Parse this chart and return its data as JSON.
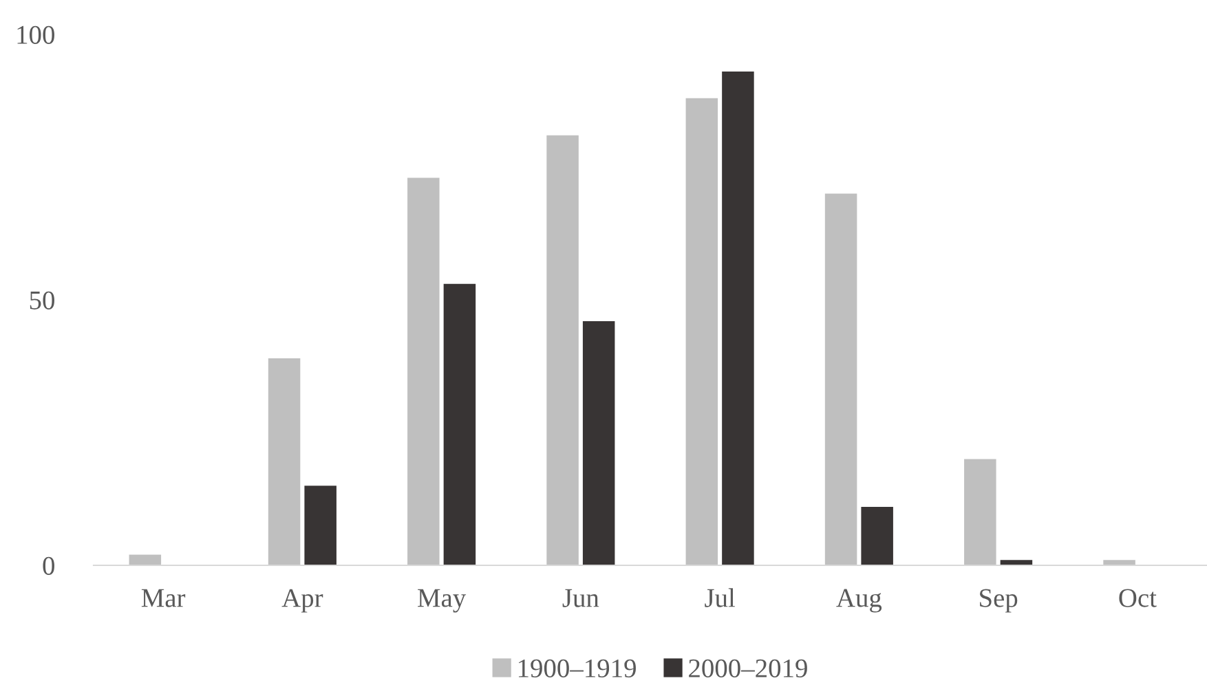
{
  "chart_data": {
    "type": "bar",
    "categories": [
      "Mar",
      "Apr",
      "May",
      "Jun",
      "Jul",
      "Aug",
      "Sep",
      "Oct"
    ],
    "series": [
      {
        "name": "1900–1919",
        "color": "#bfbfbf",
        "values": [
          2,
          39,
          73,
          81,
          88,
          70,
          20,
          1
        ]
      },
      {
        "name": "2000–2019",
        "color": "#383434",
        "values": [
          0,
          15,
          53,
          46,
          93,
          11,
          1,
          0
        ]
      }
    ],
    "ylim": [
      0,
      100
    ],
    "yticks": [
      0,
      50,
      100
    ],
    "grid": false,
    "legend": "bottom"
  }
}
